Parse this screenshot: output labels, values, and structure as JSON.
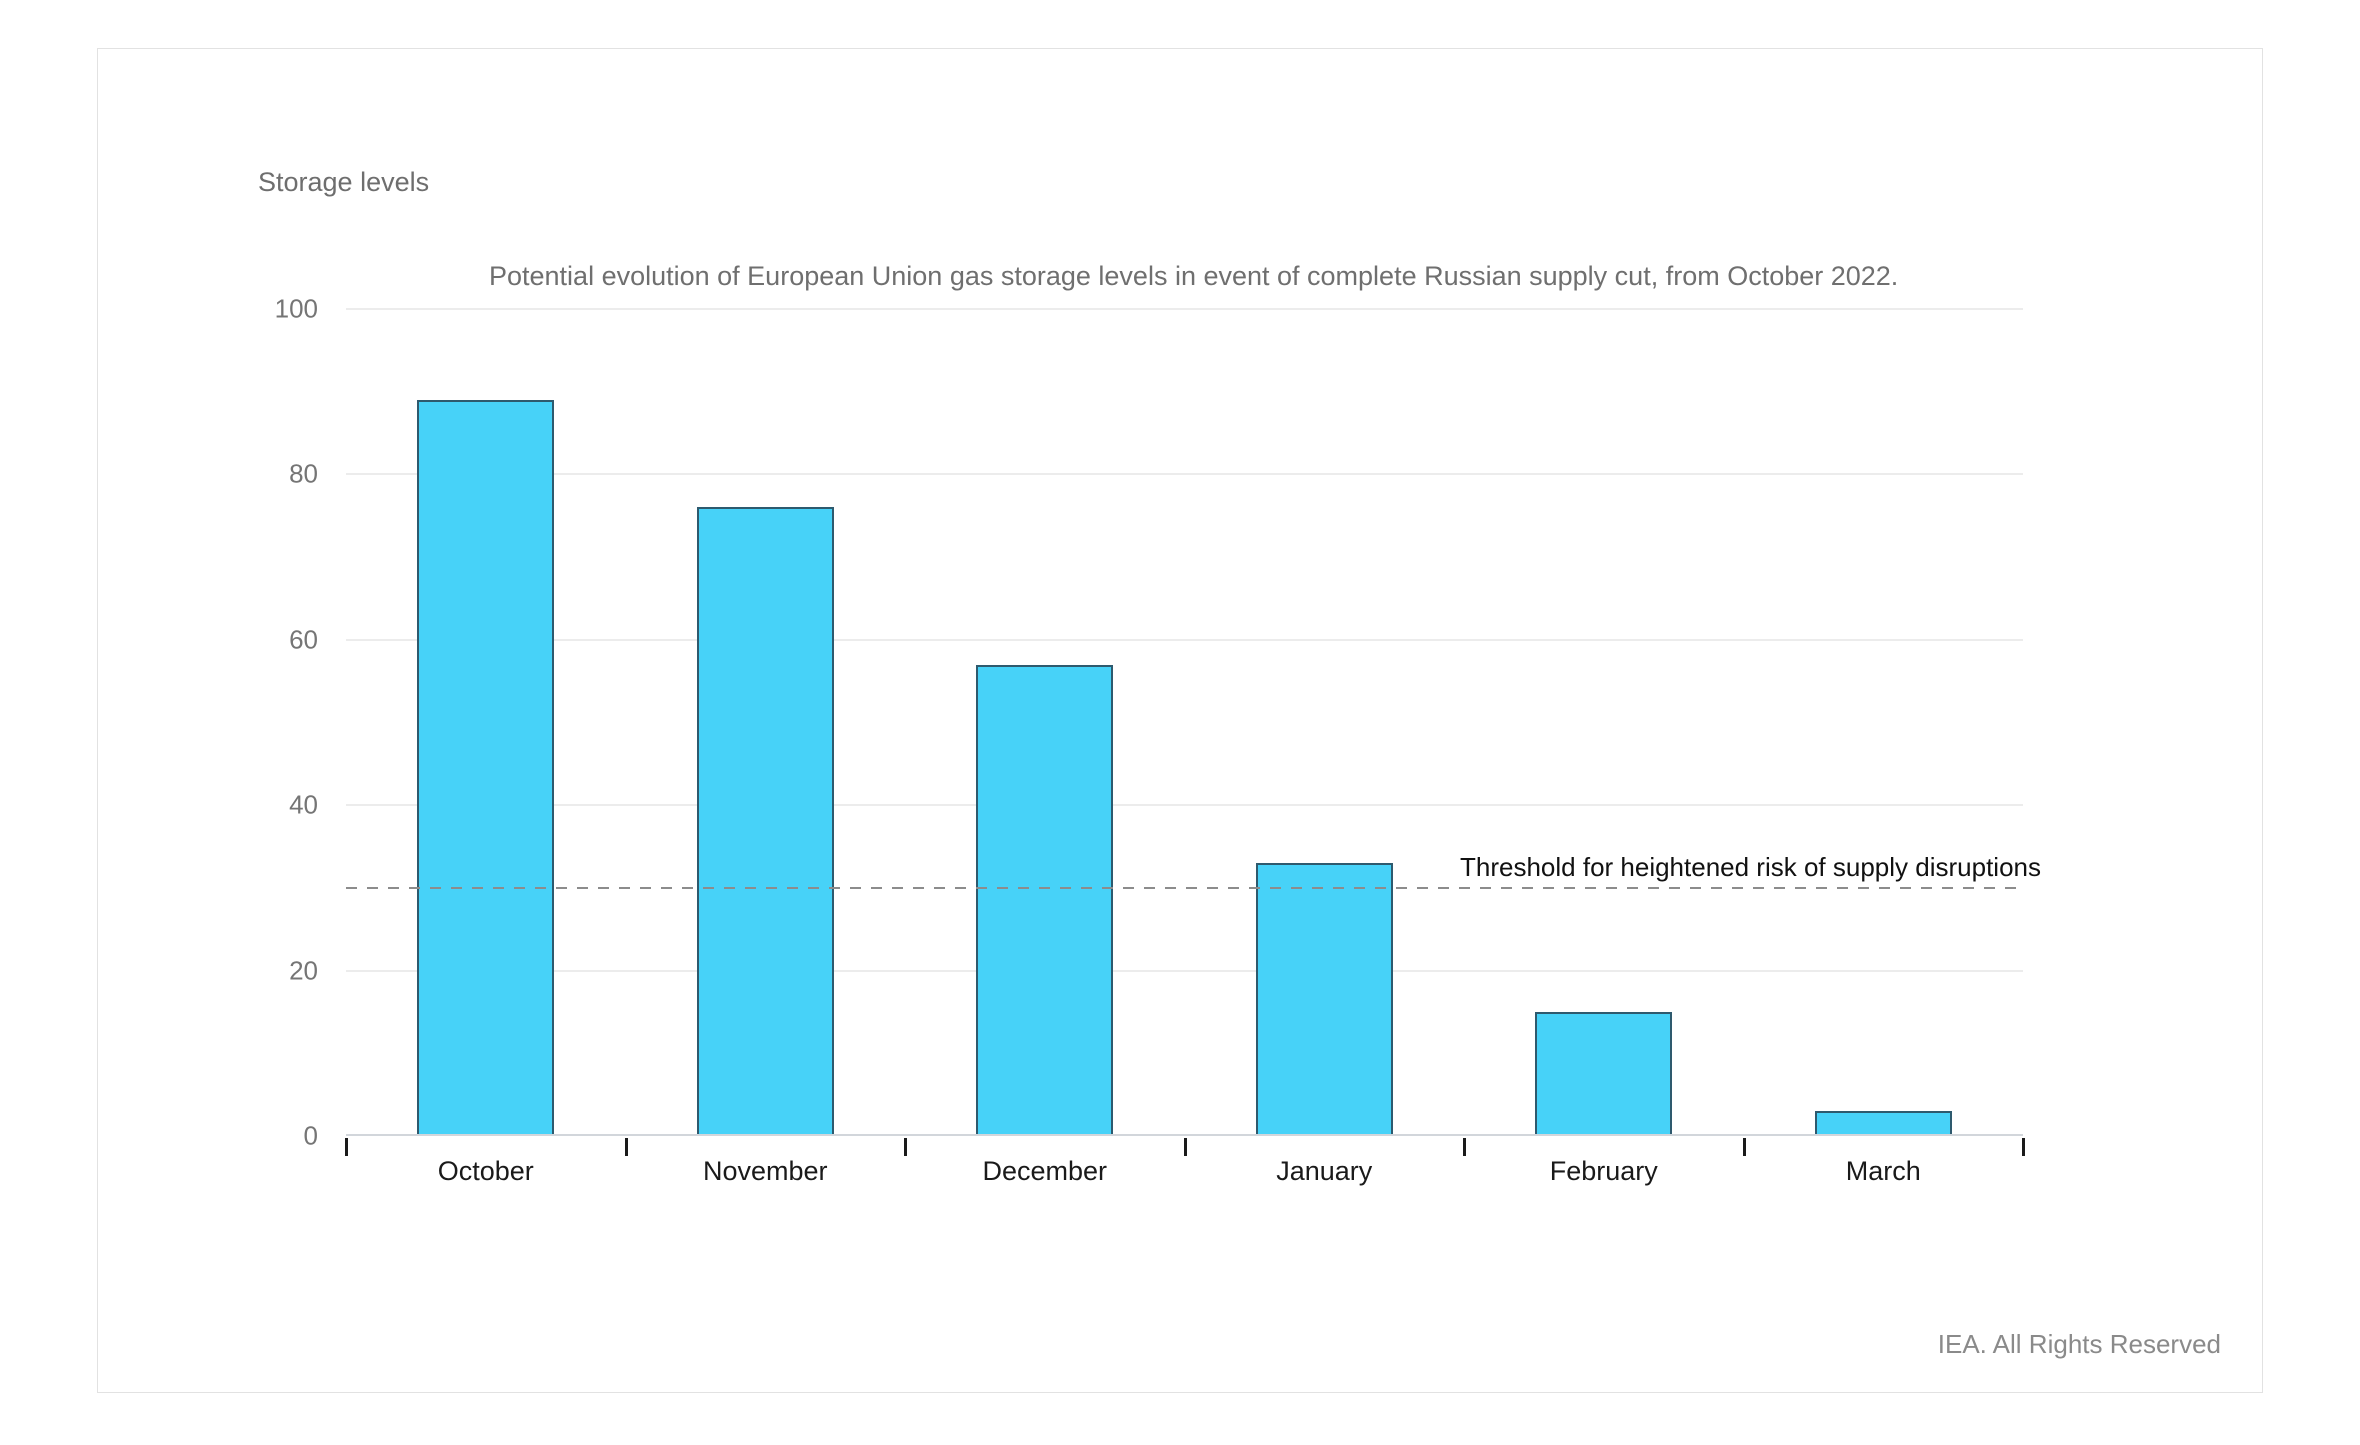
{
  "page": {
    "footer": "IEA. All Rights Reserved"
  },
  "chart_data": {
    "type": "bar",
    "title": "Potential evolution of European Union gas storage levels in event of complete Russian supply cut, from October 2022.",
    "axis_title": "Storage levels",
    "categories": [
      "October",
      "November",
      "December",
      "January",
      "February",
      "March"
    ],
    "values": [
      89,
      76,
      57,
      33,
      15,
      3
    ],
    "ylim": [
      0,
      100
    ],
    "yticks": [
      0,
      20,
      40,
      60,
      80,
      100
    ],
    "threshold": {
      "value": 30,
      "label": "Threshold for heightened risk of supply disruptions"
    },
    "grid": "horizontal",
    "legend": "none",
    "colors": {
      "bar_fill": "#47D2F8",
      "bar_border": "#2E5A6E",
      "gridline": "#ECECEC",
      "axis_line": "#D2D6DB",
      "tick_mark": "#1A1A1A",
      "threshold_line": "#8C8C8C",
      "title_text": "#6F6F6F",
      "y_label_text": "#757575",
      "category_text": "#1A1A1A",
      "footer_text": "#8A8A8A"
    }
  }
}
